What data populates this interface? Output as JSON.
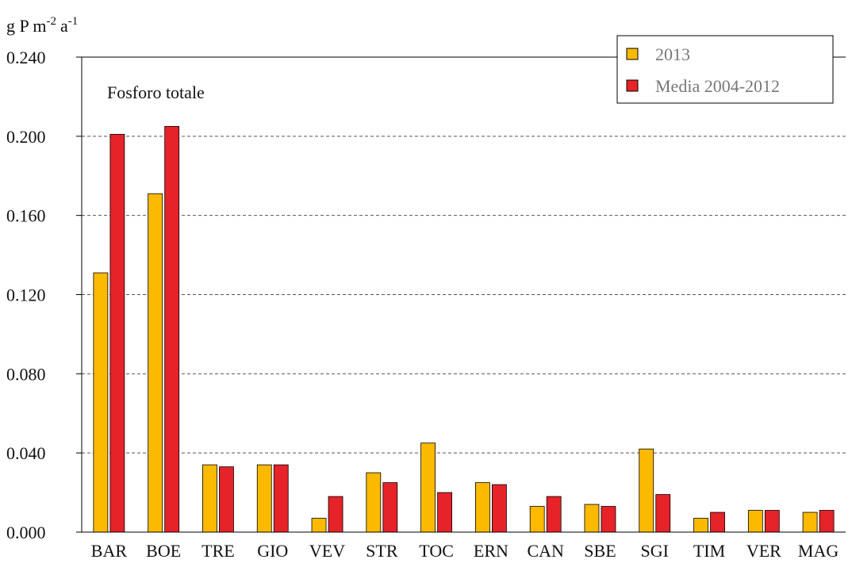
{
  "chart_data": {
    "type": "bar",
    "y_label": {
      "base": "g P m",
      "exp1": "-2",
      "mid": "a",
      "exp2": "-1"
    },
    "annotation": "Fosforo totale",
    "categories": [
      "BAR",
      "BOE",
      "TRE",
      "GIO",
      "VEV",
      "STR",
      "TOC",
      "ERN",
      "CAN",
      "SBE",
      "SGI",
      "TIM",
      "VER",
      "MAG"
    ],
    "series": [
      {
        "name": "2013",
        "color": "#fbb900",
        "values": [
          0.131,
          0.171,
          0.034,
          0.034,
          0.007,
          0.03,
          0.045,
          0.025,
          0.013,
          0.014,
          0.042,
          0.007,
          0.011,
          0.01
        ]
      },
      {
        "name": "Media 2004-2012",
        "color": "#e52329",
        "values": [
          0.201,
          0.205,
          0.033,
          0.034,
          0.018,
          0.025,
          0.02,
          0.024,
          0.018,
          0.013,
          0.019,
          0.01,
          0.011,
          0.011
        ]
      }
    ],
    "ylim": [
      0,
      0.24
    ],
    "yticks": [
      {
        "value": 0,
        "label": "0.000"
      },
      {
        "value": 0.04,
        "label": "0.040"
      },
      {
        "value": 0.08,
        "label": "0.080"
      },
      {
        "value": 0.12,
        "label": "0.120"
      },
      {
        "value": 0.16,
        "label": "0.160"
      },
      {
        "value": 0.2,
        "label": "0.200"
      },
      {
        "value": 0.24,
        "label": "0.240"
      }
    ],
    "grid": true,
    "legend": "top-right"
  }
}
